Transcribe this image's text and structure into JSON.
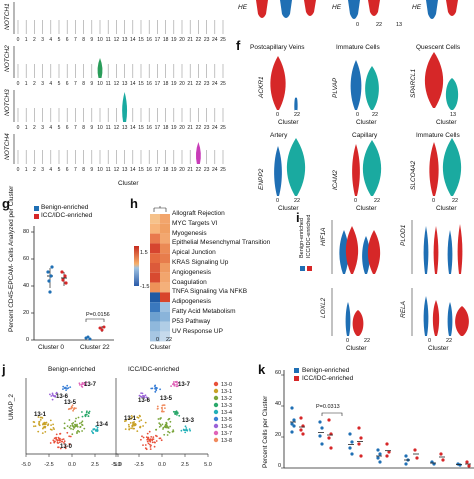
{
  "panel_letters": {
    "f": "f",
    "g": "g",
    "h": "h",
    "i": "i",
    "j": "j",
    "k": "k"
  },
  "notch_panel": {
    "genes": [
      "NOTCH1",
      "NOTCH2",
      "NOTCH3",
      "NOTCH4"
    ],
    "clusters": [
      "0",
      "1",
      "2",
      "3",
      "4",
      "5",
      "6",
      "7",
      "8",
      "9",
      "10",
      "11",
      "12",
      "13",
      "14",
      "15",
      "16",
      "17",
      "18",
      "19",
      "20",
      "21",
      "22",
      "23",
      "24",
      "25"
    ],
    "xlabel": "Cluster"
  },
  "top_strip": {
    "genes": [
      "HE",
      "HE",
      "HE"
    ],
    "cluster_ticks": [
      "0",
      "22",
      "13"
    ]
  },
  "panel_f": {
    "cells": [
      {
        "title": "Postcapillary Veins",
        "gene": "ACKR1"
      },
      {
        "title": "Immature Cells",
        "gene": "PLVAP"
      },
      {
        "title": "Quescent Cells",
        "gene": "SPARCL1"
      },
      {
        "title": "Artery",
        "gene": "ENPP2"
      },
      {
        "title": "Capillary",
        "gene": "ICAM2"
      },
      {
        "title": "Immature Cells",
        "gene": "SLCO4A2"
      }
    ],
    "ticks": [
      "0",
      "22",
      "13"
    ],
    "xlabel": "Cluster"
  },
  "panel_g": {
    "ylabel": "Percent CD45-EPCAM- Cells Analyzed per Cluster",
    "legend": [
      "Benign-enriched",
      "ICC/IDC-enriched"
    ],
    "pvalue": "P=0.0156",
    "yticks": [
      "0",
      "20",
      "40",
      "60",
      "80"
    ],
    "xticks": [
      "Cluster 0",
      "Cluster 22"
    ],
    "colors": {
      "benign": "#1f6fb4",
      "icc": "#d62728"
    }
  },
  "panel_h": {
    "pathways": [
      "Allograft Rejection",
      "MYC Targets VI",
      "Myogenesis",
      "Epithelial Mesenchymal Transition",
      "Apical Junction",
      "KRAS Signaling Up",
      "Angiogenesis",
      "Coagulation",
      "TNFA Signaling Via NFKB",
      "Adipogenesis",
      "Fatty Acid Metabolism",
      "P53 Pathway",
      "UV Response UP"
    ],
    "scale": [
      "1.5",
      "-1.5"
    ],
    "ticks": [
      "0",
      "22"
    ],
    "xlabel": "Cluster"
  },
  "panel_i": {
    "genes": [
      "HIF1A",
      "PLOD1",
      "LOXL2",
      "RELA"
    ],
    "legend": [
      "Benign-enriched",
      "ICC/IDC-enriched"
    ],
    "ticks": [
      "0",
      "22"
    ],
    "xlabel": "Cluster"
  },
  "panel_j": {
    "titles": [
      "Benign-enriched",
      "ICC/IDC-enriched"
    ],
    "ylabel": "UMAP_2",
    "xticks": [
      "-5.0",
      "-2.5",
      "0.0",
      "2.5",
      "5.0",
      "-5.0",
      "-2.5",
      "0.0",
      "2.5",
      "5.0"
    ],
    "clusters": [
      "13-0",
      "13-1",
      "13-2",
      "13-3",
      "13-4",
      "13-5",
      "13-6",
      "13-7",
      "13-8"
    ],
    "cluster_colors": [
      "#e8503a",
      "#c9a227",
      "#7aa53a",
      "#2aa86b",
      "#22b0b8",
      "#3a7fd6",
      "#9a63d8",
      "#e063b8",
      "#f08a5d"
    ],
    "map_labels_left": [
      "13-7",
      "13-6",
      "13-5",
      "13-1",
      "13-4",
      "13-0"
    ],
    "map_labels_right": [
      "13-7",
      "13-5",
      "13-6",
      "13-1",
      "13-3"
    ]
  },
  "panel_k": {
    "ylabel": "Percent Cells per Cluster",
    "legend": [
      "Benign-enriched",
      "ICC/IDC-enriched"
    ],
    "pvalue": "P=0.0313",
    "yticks": [
      "0",
      "20",
      "40",
      "60"
    ]
  }
}
